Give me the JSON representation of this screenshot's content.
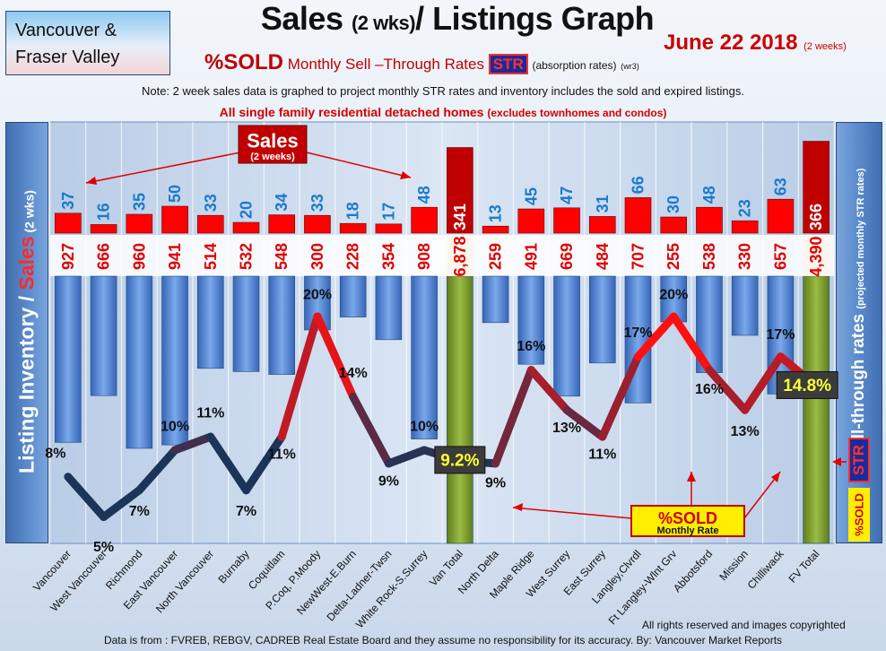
{
  "region": {
    "line1": "Vancouver &",
    "line2": "Fraser Valley"
  },
  "title": {
    "main1": "Sales",
    "small": "(2 wks)",
    "main2": "/ Listings Graph"
  },
  "date": {
    "text": "June 22 2018",
    "small": "(2 weeks)"
  },
  "subtitle": {
    "sold": "%SOLD",
    "text": "Monthly Sell –Through Rates",
    "str": "STR",
    "absorption": "(absorption rates)",
    "version": "(wr3)"
  },
  "note": "Note: 2 week sales data is graphed to project monthly STR rates and inventory includes the sold and expired listings.",
  "note2": {
    "main": "All single family residential detached homes",
    "small": "(excludes townhomes and condos)"
  },
  "left_axis": {
    "part1": "Listing Inventory / ",
    "part2": "Sales",
    "part3": " (2 wks)"
  },
  "right_axis": {
    "main": "Sell-through rates",
    "small": "(projected monthly STR rates)"
  },
  "side_badges": {
    "str": "STR",
    "sold": "%SOLD"
  },
  "callouts": {
    "sales_title": "Sales",
    "sales_sub": "(2 weeks)",
    "sold_title": "%SOLD",
    "sold_sub": "Monthly Rate"
  },
  "footer": {
    "rights": "All rights reserved and  images copyrighted",
    "source": "Data is from : FVREB, REBGV, CADREB Real Estate Board and they assume no responsibility for its accuracy. By: Vancouver Market Reports"
  },
  "colors": {
    "sales_bar": "#ff0000",
    "listings_bar": "#4f7fd0",
    "total_bar": "#7a9a2a",
    "str_low": "#1c3458",
    "str_high": "#ff1010",
    "label_blue": "#1a7ad0",
    "label_red": "#e00000"
  },
  "chart_data": {
    "type": "bar",
    "categories": [
      "Vancouver",
      "West Vancouver",
      "Richmond",
      "East Vancouver",
      "North Vancouver",
      "Burnaby",
      "Coquitlam",
      "P.Coq, P.Moody",
      "NewWest-E.Burn",
      "Delta-Ladner-Twsn",
      "White Rock-S.Surrey",
      "Van Total",
      "North Delta",
      "Maple Ridge",
      "West Surrey",
      "East Surrey",
      "Langley,Clvrdl",
      "Ft Langley-Wlnt Grv",
      "Abbotsford",
      "Mission",
      "Chilliwack",
      "FV Total"
    ],
    "series": [
      {
        "name": "Sales (2 weeks)",
        "values": [
          37,
          16,
          35,
          50,
          33,
          20,
          34,
          33,
          18,
          17,
          48,
          341,
          13,
          45,
          47,
          31,
          66,
          30,
          48,
          23,
          63,
          366
        ],
        "labels": [
          "37",
          "16",
          "35",
          "50",
          "33",
          "20",
          "34",
          "33",
          "18",
          "17",
          "48",
          "341",
          "13",
          "45",
          "47",
          "31",
          "66",
          "30",
          "48",
          "23",
          "63",
          "366"
        ]
      },
      {
        "name": "Listing Inventory",
        "values": [
          927,
          666,
          960,
          941,
          514,
          532,
          548,
          300,
          228,
          354,
          908,
          6878,
          259,
          491,
          669,
          484,
          707,
          255,
          538,
          330,
          657,
          4390
        ],
        "labels": [
          "927",
          "666",
          "960",
          "941",
          "514",
          "532",
          "548",
          "300",
          "228",
          "354",
          "908",
          "6,878",
          "259",
          "491",
          "669",
          "484",
          "707",
          "255",
          "538",
          "330",
          "657",
          "4,390"
        ]
      },
      {
        "name": "%SOLD Monthly Rate",
        "values": [
          8,
          5,
          7,
          10,
          11,
          7,
          11,
          20,
          14,
          9,
          10,
          9.2,
          9,
          16,
          13,
          11,
          17,
          20,
          16,
          13,
          17,
          14.8
        ],
        "labels": [
          "8%",
          "5%",
          "7%",
          "10%",
          "11%",
          "7%",
          "11%",
          "20%",
          "14%",
          "9%",
          "10%",
          "9.2%",
          "9%",
          "16%",
          "13%",
          "11%",
          "17%",
          "20%",
          "16%",
          "13%",
          "17%",
          "14.8%"
        ]
      }
    ],
    "totals": [
      "Van Total",
      "FV Total"
    ],
    "grid": true
  }
}
